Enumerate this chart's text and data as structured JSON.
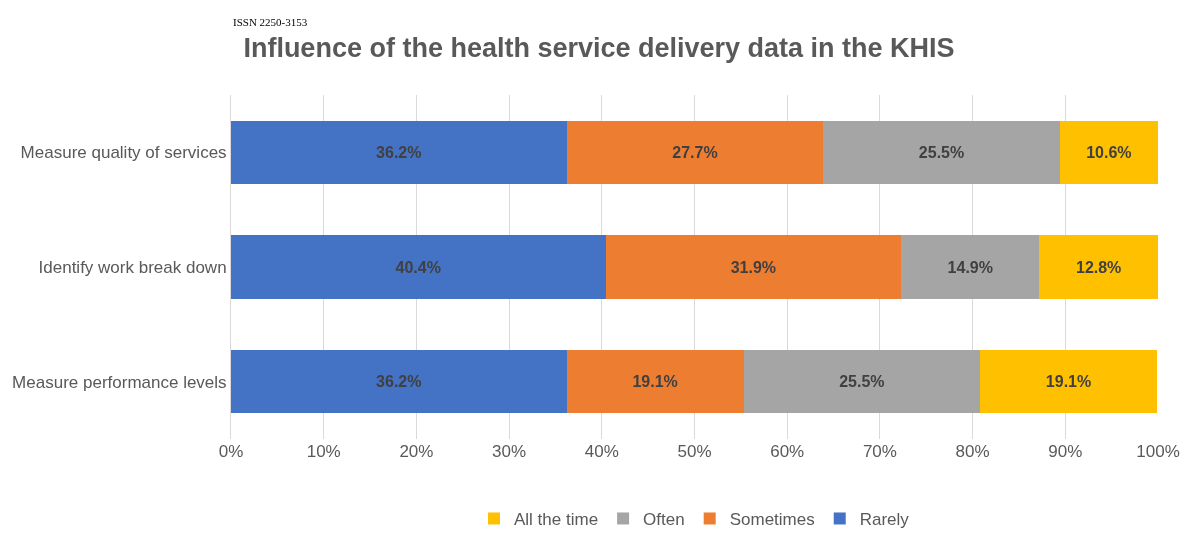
{
  "chart_data": {
    "type": "bar",
    "orientation": "horizontal",
    "stacked": true,
    "title": "Influence of the health service delivery data in the KHIS",
    "annotations": [
      "ISSN 2250-3153"
    ],
    "categories": [
      "Measure quality of services",
      "Identify work break down",
      "Measure performance levels"
    ],
    "series": [
      {
        "name": "Rarely",
        "color": "#4472c4",
        "values": [
          36.2,
          40.4,
          36.2
        ],
        "value_labels": [
          "36.2%",
          "40.4%",
          "36.2%"
        ]
      },
      {
        "name": "Sometimes",
        "color": "#ed7d31",
        "values": [
          27.7,
          31.9,
          19.1
        ],
        "value_labels": [
          "27.7%",
          "31.9%",
          "19.1%"
        ]
      },
      {
        "name": "Often",
        "color": "#a5a5a5",
        "values": [
          25.5,
          14.9,
          25.5
        ],
        "value_labels": [
          "25.5%",
          "14.9%",
          "25.5%"
        ]
      },
      {
        "name": "All the time",
        "color": "#ffc000",
        "values": [
          10.6,
          12.8,
          19.1
        ],
        "value_labels": [
          "10.6%",
          "12.8%",
          "19.1%"
        ]
      }
    ],
    "xlim": [
      0,
      100
    ],
    "xticks": [
      {
        "value": 0,
        "label": "0%"
      },
      {
        "value": 10,
        "label": "10%"
      },
      {
        "value": 20,
        "label": "20%"
      },
      {
        "value": 30,
        "label": "30%"
      },
      {
        "value": 40,
        "label": "40%"
      },
      {
        "value": 50,
        "label": "50%"
      },
      {
        "value": 60,
        "label": "60%"
      },
      {
        "value": 70,
        "label": "70%"
      },
      {
        "value": 80,
        "label": "80%"
      },
      {
        "value": 90,
        "label": "90%"
      },
      {
        "value": 100,
        "label": "100%"
      }
    ],
    "grid": "x",
    "legend": "bottom"
  }
}
